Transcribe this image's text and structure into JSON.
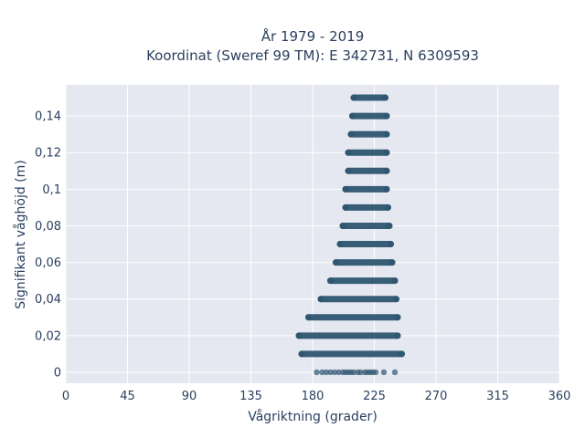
{
  "chart_data": {
    "type": "scatter",
    "title": "År 1979 - 2019",
    "subtitle": "Koordinat (Sweref 99 TM): E 342731, N 6309593",
    "xlabel": "Vågriktning (grader)",
    "ylabel": "Signifikant våghöjd (m)",
    "xlim": [
      0,
      360
    ],
    "ylim": [
      -0.006,
      0.157
    ],
    "xticks": [
      0,
      45,
      90,
      135,
      180,
      225,
      270,
      315,
      360
    ],
    "xtick_labels": [
      "0",
      "45",
      "90",
      "135",
      "180",
      "225",
      "270",
      "315",
      "360"
    ],
    "yticks": [
      0,
      0.02,
      0.04,
      0.06,
      0.08,
      0.1,
      0.12,
      0.14
    ],
    "ytick_labels": [
      "0",
      "0,02",
      "0,04",
      "0,06",
      "0,08",
      "0,1",
      "0,12",
      "0,14"
    ],
    "grid": true,
    "plot_background": "#e5e8f0",
    "marker_color": "#2e5670",
    "bands": [
      {
        "y": 0.15,
        "x_min": 210,
        "x_max": 233
      },
      {
        "y": 0.14,
        "x_min": 209,
        "x_max": 234
      },
      {
        "y": 0.13,
        "x_min": 208,
        "x_max": 234
      },
      {
        "y": 0.12,
        "x_min": 206,
        "x_max": 234
      },
      {
        "y": 0.11,
        "x_min": 206,
        "x_max": 234
      },
      {
        "y": 0.1,
        "x_min": 204,
        "x_max": 234
      },
      {
        "y": 0.09,
        "x_min": 204,
        "x_max": 235
      },
      {
        "y": 0.08,
        "x_min": 202,
        "x_max": 236
      },
      {
        "y": 0.07,
        "x_min": 200,
        "x_max": 237
      },
      {
        "y": 0.06,
        "x_min": 197,
        "x_max": 238
      },
      {
        "y": 0.05,
        "x_min": 193,
        "x_max": 240
      },
      {
        "y": 0.04,
        "x_min": 186,
        "x_max": 241
      },
      {
        "y": 0.03,
        "x_min": 177,
        "x_max": 242
      },
      {
        "y": 0.02,
        "x_min": 170,
        "x_max": 242
      },
      {
        "y": 0.01,
        "x_min": 172,
        "x_max": 245
      }
    ],
    "zero_points": [
      183,
      187,
      190,
      193,
      196,
      199,
      202,
      204,
      206,
      208,
      210,
      213,
      215,
      218,
      220,
      222,
      224,
      226,
      232,
      240
    ]
  }
}
